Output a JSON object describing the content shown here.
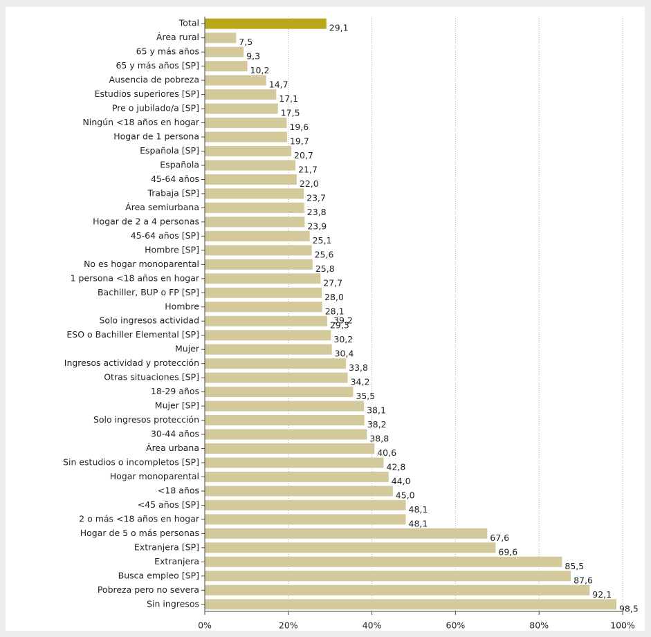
{
  "chart_data": {
    "type": "barh",
    "categories": [
      "Total",
      "Área rural",
      "65 y más años",
      "65 y más años [SP]",
      "Ausencia de pobreza",
      "Estudios superiores [SP]",
      "Pre o jubilado/a [SP]",
      "Ningún <18 años en hogar",
      "Hogar de 1 persona",
      "Española [SP]",
      "Española",
      "45-64 años",
      "Trabaja [SP]",
      "Área semiurbana",
      "Hogar de 2 a 4 personas",
      "45-64 años [SP]",
      "Hombre [SP]",
      "No es hogar monoparental",
      "1 persona <18 años en hogar",
      "Bachiller, BUP o FP [SP]",
      "Hombre",
      "Solo ingresos actividad",
      "ESO o Bachiller Elemental [SP]",
      "Mujer",
      "Ingresos actividad y protección",
      "Otras situaciones [SP]",
      "18-29 años",
      "Mujer [SP]",
      "Solo ingresos protección",
      "30-44 años",
      "Área urbana",
      "Sin estudios o incompletos [SP]",
      "Hogar monoparental",
      "<18 años",
      "<45 años [SP]",
      "2 o más <18 años en hogar",
      "Hogar de 5 o más personas",
      "Extranjera [SP]",
      "Extranjera",
      "Busca empleo [SP]",
      "Pobreza pero no severa",
      "Sin ingresos"
    ],
    "values": [
      29.1,
      7.5,
      9.3,
      10.2,
      14.7,
      17.1,
      17.5,
      19.6,
      19.7,
      20.7,
      21.7,
      22.0,
      23.7,
      23.8,
      23.9,
      25.1,
      25.6,
      25.8,
      27.7,
      28.0,
      28.1,
      29.3,
      30.2,
      30.4,
      33.8,
      34.2,
      35.5,
      38.1,
      38.2,
      38.8,
      40.6,
      42.8,
      44.0,
      45.0,
      48.1,
      48.1,
      67.6,
      69.6,
      85.5,
      87.6,
      92.1,
      98.5
    ],
    "value_labels": [
      "29,1",
      "7,5",
      "9,3",
      "10,2",
      "14,7",
      "17,1",
      "17,5",
      "19,6",
      "19,7",
      "20,7",
      "21,7",
      "22,0",
      "23,7",
      "23,8",
      "23,9",
      "25,1",
      "25,6",
      "25,8",
      "27,7",
      "28,0",
      "28,1",
      "29,3",
      "30,2",
      "30,4",
      "33,8",
      "34,2",
      "35,5",
      "38,1",
      "38,2",
      "38,8",
      "40,6",
      "42,8",
      "44,0",
      "45,0",
      "48,1",
      "48,1",
      "67,6",
      "69,6",
      "85,5",
      "87,6",
      "92,1",
      "98,5"
    ],
    "colors": [
      "#b8a81a",
      "#d4c99b",
      "#d4c99b",
      "#d4c99b",
      "#d4c99b",
      "#d4c99b",
      "#d4c99b",
      "#d4c99b",
      "#d4c99b",
      "#d4c99b",
      "#d4c99b",
      "#d4c99b",
      "#d4c99b",
      "#d4c99b",
      "#d4c99b",
      "#d4c99b",
      "#d4c99b",
      "#d4c99b",
      "#d4c99b",
      "#d4c99b",
      "#d4c99b",
      "#d4c99b",
      "#d4c99b",
      "#d4c99b",
      "#d4c99b",
      "#d4c99b",
      "#d4c99b",
      "#d4c99b",
      "#d4c99b",
      "#d4c99b",
      "#d4c99b",
      "#d4c99b",
      "#d4c99b",
      "#d4c99b",
      "#d4c99b",
      "#d4c99b",
      "#d4c99b",
      "#d4c99b",
      "#d4c99b",
      "#d4c99b",
      "#d4c99b",
      "#d4c99b"
    ],
    "annotations": [
      "39,2"
    ],
    "xlim": [
      0,
      100
    ],
    "xticks": [
      {
        "value": 0,
        "label": "0%"
      },
      {
        "value": 20,
        "label": "20%"
      },
      {
        "value": 40,
        "label": "40%"
      },
      {
        "value": 60,
        "label": "60%"
      },
      {
        "value": 80,
        "label": "80%"
      },
      {
        "value": 100,
        "label": "100%"
      }
    ],
    "grid": true
  }
}
